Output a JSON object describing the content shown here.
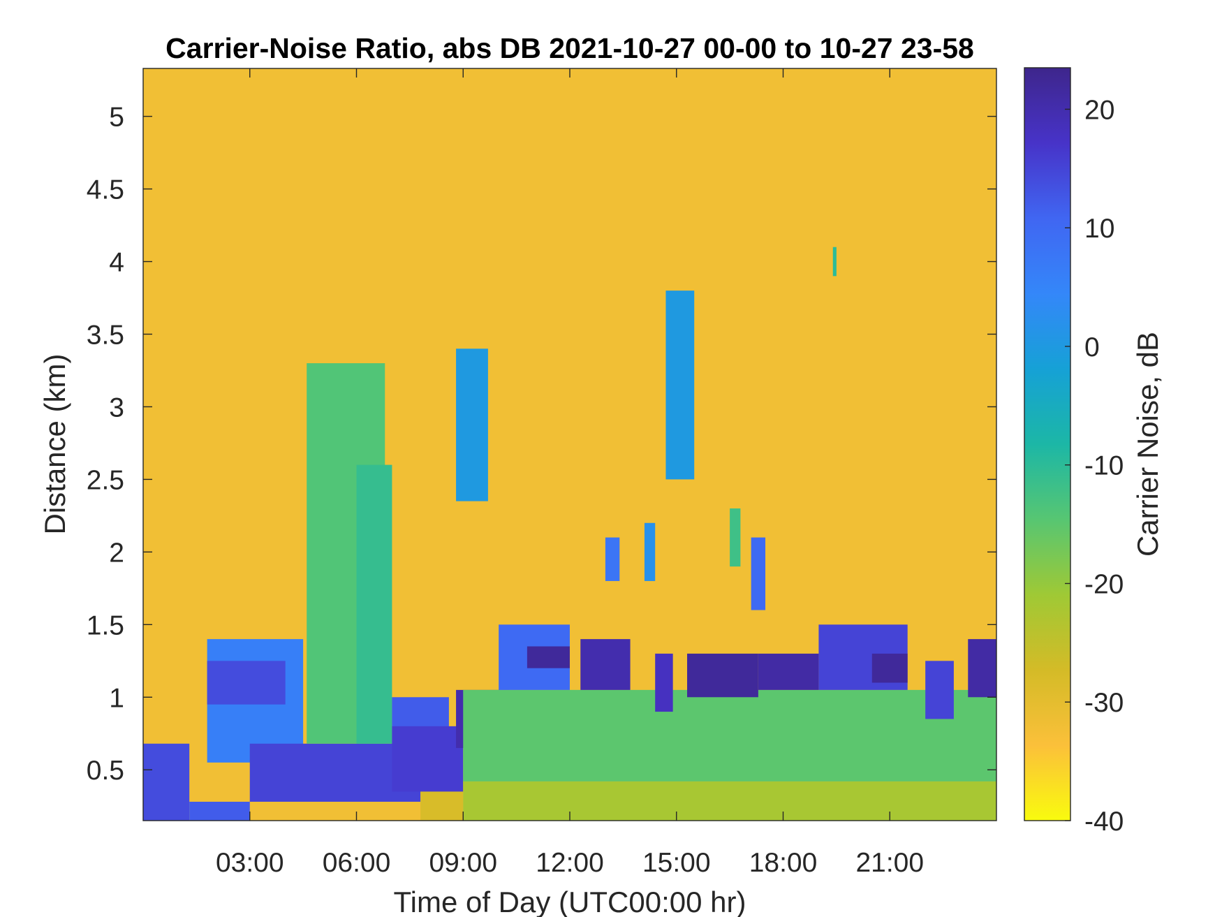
{
  "chart_data": {
    "type": "heatmap",
    "title": "Carrier-Noise Ratio, abs DB 2021-10-27 00-00 to 10-27 23-58",
    "xlabel": "Time of Day (UTC00:00 hr)",
    "ylabel": "Distance (km)",
    "colorbar_label": "Carrier Noise, dB",
    "x_unit": "hour of day (UTC)",
    "xlim": [
      0,
      24
    ],
    "ylim": [
      0.15,
      5.33
    ],
    "clim": [
      -40,
      23.5
    ],
    "colormap": "parula, reversed (yellow = low, dark blue = high)",
    "colormap_stops": [
      "#f9fb0e",
      "#fbc03a",
      "#d4bb27",
      "#9fc935",
      "#57c672",
      "#1cb7a6",
      "#16a1d6",
      "#3487f9",
      "#4066f2",
      "#4733c8",
      "#3e268c"
    ],
    "x_ticks": [
      3,
      6,
      9,
      12,
      15,
      18,
      21
    ],
    "x_tick_labels": [
      "03:00",
      "06:00",
      "09:00",
      "12:00",
      "15:00",
      "18:00",
      "21:00"
    ],
    "y_ticks": [
      0.5,
      1,
      1.5,
      2,
      2.5,
      3,
      3.5,
      4,
      4.5,
      5
    ],
    "y_tick_labels": [
      "0.5",
      "1",
      "1.5",
      "2",
      "2.5",
      "3",
      "3.5",
      "4",
      "4.5",
      "5"
    ],
    "c_ticks": [
      -40,
      -30,
      -20,
      -10,
      0,
      10,
      20
    ],
    "c_tick_labels": [
      "-40",
      "-30",
      "-20",
      "-10",
      "0",
      "10",
      "20"
    ],
    "background_value": -32,
    "regions": [
      {
        "x": [
          0,
          1.3
        ],
        "y": [
          0.15,
          0.68
        ],
        "value": 14
      },
      {
        "x": [
          1.3,
          3.0
        ],
        "y": [
          0.15,
          0.28
        ],
        "value": 12
      },
      {
        "x": [
          1.8,
          4.5
        ],
        "y": [
          0.55,
          1.4
        ],
        "value": 6
      },
      {
        "x": [
          1.8,
          4.0
        ],
        "y": [
          0.95,
          1.25
        ],
        "value": 14
      },
      {
        "x": [
          3.0,
          7.8
        ],
        "y": [
          0.28,
          0.68
        ],
        "value": 15
      },
      {
        "x": [
          4.6,
          6.8
        ],
        "y": [
          0.68,
          3.3
        ],
        "value": -14
      },
      {
        "x": [
          6.0,
          7.0
        ],
        "y": [
          0.68,
          2.6
        ],
        "value": -11
      },
      {
        "x": [
          7.0,
          8.6
        ],
        "y": [
          0.68,
          1.0
        ],
        "value": 12
      },
      {
        "x": [
          7.8,
          9.0
        ],
        "y": [
          0.15,
          0.4
        ],
        "value": -28
      },
      {
        "x": [
          7.0,
          9.0
        ],
        "y": [
          0.35,
          0.8
        ],
        "value": 16
      },
      {
        "x": [
          8.8,
          10.3
        ],
        "y": [
          0.65,
          1.05
        ],
        "value": 20
      },
      {
        "x": [
          8.8,
          9.7
        ],
        "y": [
          2.35,
          3.4
        ],
        "value": 0
      },
      {
        "x": [
          9.0,
          24.0
        ],
        "y": [
          0.15,
          0.42
        ],
        "value": -22
      },
      {
        "x": [
          9.0,
          24.0
        ],
        "y": [
          0.42,
          1.05
        ],
        "value": -15
      },
      {
        "x": [
          10.0,
          12.0
        ],
        "y": [
          1.05,
          1.5
        ],
        "value": 10
      },
      {
        "x": [
          10.8,
          12.0
        ],
        "y": [
          1.2,
          1.35
        ],
        "value": 22
      },
      {
        "x": [
          12.3,
          13.7
        ],
        "y": [
          1.05,
          1.4
        ],
        "value": 20
      },
      {
        "x": [
          14.4,
          14.9
        ],
        "y": [
          0.9,
          1.3
        ],
        "value": 18
      },
      {
        "x": [
          15.3,
          17.3
        ],
        "y": [
          1.0,
          1.3
        ],
        "value": 22
      },
      {
        "x": [
          17.3,
          19.0
        ],
        "y": [
          1.05,
          1.3
        ],
        "value": 21
      },
      {
        "x": [
          19.0,
          21.5
        ],
        "y": [
          1.05,
          1.5
        ],
        "value": 15
      },
      {
        "x": [
          20.5,
          21.5
        ],
        "y": [
          1.1,
          1.3
        ],
        "value": 22
      },
      {
        "x": [
          22.0,
          22.8
        ],
        "y": [
          0.85,
          1.25
        ],
        "value": 15
      },
      {
        "x": [
          23.2,
          24.0
        ],
        "y": [
          1.0,
          1.4
        ],
        "value": 21
      },
      {
        "x": [
          14.7,
          15.5
        ],
        "y": [
          2.5,
          3.8
        ],
        "value": 0
      },
      {
        "x": [
          13.0,
          13.4
        ],
        "y": [
          1.8,
          2.1
        ],
        "value": 8
      },
      {
        "x": [
          14.1,
          14.4
        ],
        "y": [
          1.8,
          2.2
        ],
        "value": 2
      },
      {
        "x": [
          16.5,
          16.8
        ],
        "y": [
          1.9,
          2.3
        ],
        "value": -12
      },
      {
        "x": [
          17.1,
          17.5
        ],
        "y": [
          1.6,
          2.1
        ],
        "value": 10
      },
      {
        "x": [
          19.4,
          19.5
        ],
        "y": [
          3.9,
          4.1
        ],
        "value": -10
      }
    ]
  }
}
